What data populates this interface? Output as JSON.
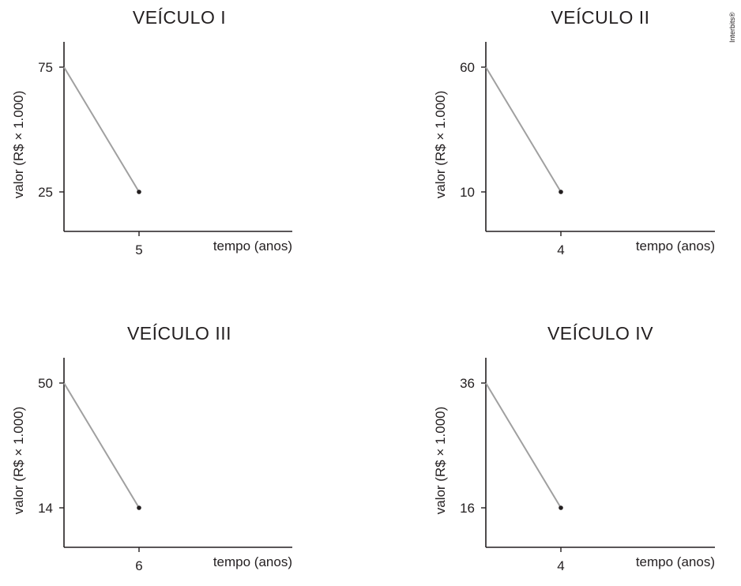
{
  "credit": "Interbits®",
  "chart_data": [
    {
      "type": "line",
      "title": "VEÍCULO I",
      "xlabel": "tempo (anos)",
      "ylabel": "valor (R$ × 1.000)",
      "x_ticks": [
        "5"
      ],
      "y_ticks": [
        "75",
        "25"
      ],
      "series": [
        {
          "x": [
            0,
            5
          ],
          "y": [
            75,
            25
          ]
        }
      ],
      "line_color": "#a0a0a0",
      "point_color": "#231f20"
    },
    {
      "type": "line",
      "title": "VEÍCULO II",
      "xlabel": "tempo (anos)",
      "ylabel": "valor (R$ × 1.000)",
      "x_ticks": [
        "4"
      ],
      "y_ticks": [
        "60",
        "10"
      ],
      "series": [
        {
          "x": [
            0,
            4
          ],
          "y": [
            60,
            10
          ]
        }
      ],
      "line_color": "#a0a0a0",
      "point_color": "#231f20"
    },
    {
      "type": "line",
      "title": "VEÍCULO III",
      "xlabel": "tempo (anos)",
      "ylabel": "valor (R$ × 1.000)",
      "x_ticks": [
        "6"
      ],
      "y_ticks": [
        "50",
        "14"
      ],
      "series": [
        {
          "x": [
            0,
            6
          ],
          "y": [
            50,
            14
          ]
        }
      ],
      "line_color": "#a0a0a0",
      "point_color": "#231f20"
    },
    {
      "type": "line",
      "title": "VEÍCULO IV",
      "xlabel": "tempo (anos)",
      "ylabel": "valor (R$ × 1.000)",
      "x_ticks": [
        "4"
      ],
      "y_ticks": [
        "36",
        "16"
      ],
      "series": [
        {
          "x": [
            0,
            4
          ],
          "y": [
            36,
            16
          ]
        }
      ],
      "line_color": "#a0a0a0",
      "point_color": "#231f20"
    }
  ]
}
